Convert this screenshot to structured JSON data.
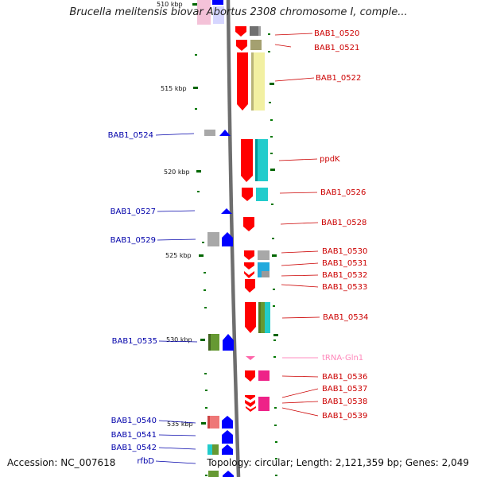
{
  "title": "Brucella melitensis biovar Abortus 2308 chromosome I, comple...",
  "footer": {
    "accession": "Accession: NC_007618",
    "topology": "Topology: circular; Length: 2,121,359 bp; Genes: 2,049"
  },
  "scale_labels": [
    "510 kbp",
    "515 kbp",
    "520 kbp",
    "525 kbp",
    "530 kbp",
    "535 kbp"
  ],
  "right_genes": [
    "BAB1_0520",
    "BAB1_0521",
    "BAB1_0522",
    "ppdK",
    "BAB1_0526",
    "BAB1_0528",
    "BAB1_0530",
    "BAB1_0531",
    "BAB1_0532",
    "BAB1_0533",
    "BAB1_0534",
    "tRNA-Gln1",
    "BAB1_0536",
    "BAB1_0537",
    "BAB1_0538",
    "BAB1_0539"
  ],
  "left_genes": [
    "BAB1_0524",
    "BAB1_0527",
    "BAB1_0529",
    "BAB1_0535",
    "BAB1_0540",
    "BAB1_0541",
    "BAB1_0542",
    "rfbD"
  ],
  "colors": {
    "forward_gene": "#ff0000",
    "reverse_gene": "#0000ff",
    "trna": "#ff66aa",
    "right_label": "#cc0000",
    "left_label": "#0000aa",
    "backbone": "#808080",
    "tick": "#007700"
  }
}
